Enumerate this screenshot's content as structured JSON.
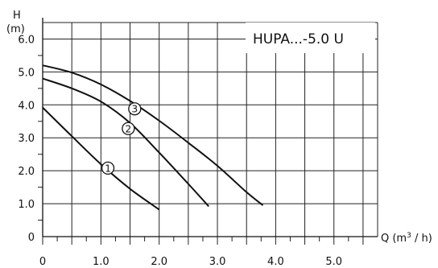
{
  "chart_data": {
    "type": "line",
    "title": "HUPA...-5.0 U",
    "ylabel_top": "H",
    "ylabel_unit": "(m)",
    "xlabel_main": "Q (m",
    "xlabel_sup": "3",
    "xlabel_tail": " / h)",
    "xlim": [
      0,
      5.75
    ],
    "ylim": [
      0,
      6.5
    ],
    "x_ticks": [
      0,
      1.0,
      2.0,
      3.0,
      4.0,
      5.0
    ],
    "x_tick_labels": [
      "0",
      "1.0",
      "2.0",
      "3.0",
      "4.0",
      "5.0"
    ],
    "y_ticks": [
      0,
      1.0,
      2.0,
      3.0,
      4.0,
      5.0,
      6.0
    ],
    "y_tick_labels": [
      "0",
      "1.0",
      "2.0",
      "3.0",
      "4.0",
      "5.0",
      "6.0"
    ],
    "grid": true,
    "series": [
      {
        "marker_label": "1",
        "x": [
          0,
          0.5,
          1.0,
          1.5,
          2.0
        ],
        "y": [
          3.92,
          3.05,
          2.2,
          1.45,
          0.82
        ],
        "marker_at": [
          1.12,
          2.08
        ]
      },
      {
        "marker_label": "2",
        "x": [
          0,
          0.5,
          1.0,
          1.5,
          2.0,
          2.5,
          2.85
        ],
        "y": [
          4.8,
          4.5,
          4.1,
          3.45,
          2.55,
          1.6,
          0.92
        ],
        "marker_at": [
          1.47,
          3.28
        ]
      },
      {
        "marker_label": "3",
        "x": [
          0,
          0.5,
          1.0,
          1.5,
          2.0,
          2.5,
          3.0,
          3.5,
          3.78
        ],
        "y": [
          5.2,
          4.98,
          4.62,
          4.12,
          3.52,
          2.85,
          2.15,
          1.35,
          0.95
        ],
        "marker_at": [
          1.58,
          3.88
        ]
      }
    ]
  }
}
